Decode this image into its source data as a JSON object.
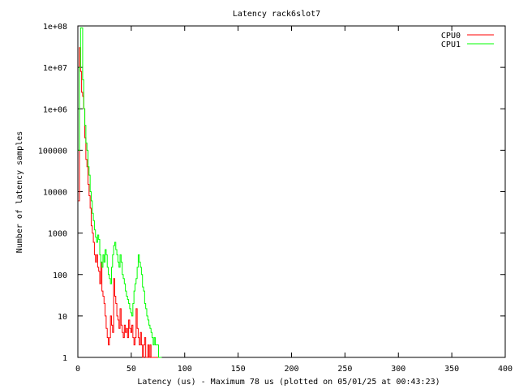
{
  "chart_data": {
    "type": "line",
    "title": "Latency rack6slot7",
    "xlabel": "Latency (us) - Maximum 78 us (plotted on 05/01/25 at 00:43:23)",
    "ylabel": "Number of latency samples",
    "xlim": [
      0,
      400
    ],
    "ylim": [
      1,
      100000000
    ],
    "yscale": "log",
    "grid": false,
    "legend": "top-right",
    "x_ticks": [
      {
        "value": 0,
        "label": "0"
      },
      {
        "value": 50,
        "label": "50"
      },
      {
        "value": 100,
        "label": "100"
      },
      {
        "value": 150,
        "label": "150"
      },
      {
        "value": 200,
        "label": "200"
      },
      {
        "value": 250,
        "label": "250"
      },
      {
        "value": 300,
        "label": "300"
      },
      {
        "value": 350,
        "label": "350"
      },
      {
        "value": 400,
        "label": "400"
      }
    ],
    "y_ticks": [
      {
        "value": 1,
        "label": "1"
      },
      {
        "value": 10,
        "label": "10"
      },
      {
        "value": 100,
        "label": "100"
      },
      {
        "value": 1000,
        "label": "1000"
      },
      {
        "value": 10000,
        "label": "10000"
      },
      {
        "value": 100000,
        "label": "100000"
      },
      {
        "value": 1000000,
        "label": "1e+06"
      },
      {
        "value": 10000000,
        "label": "1e+07"
      },
      {
        "value": 100000000,
        "label": "1e+08"
      }
    ],
    "series": [
      {
        "name": "CPU0",
        "color": "#ff0000",
        "x": [
          1,
          2,
          3,
          4,
          5,
          6,
          7,
          8,
          9,
          10,
          11,
          12,
          13,
          14,
          15,
          16,
          17,
          18,
          19,
          20,
          21,
          22,
          23,
          24,
          25,
          26,
          27,
          28,
          29,
          30,
          31,
          32,
          33,
          34,
          35,
          36,
          37,
          38,
          39,
          40,
          41,
          42,
          43,
          44,
          45,
          46,
          47,
          48,
          49,
          50,
          51,
          52,
          53,
          54,
          55,
          56,
          57,
          58,
          59,
          60,
          61,
          62,
          63,
          64,
          65,
          66,
          67,
          68,
          69,
          70,
          71,
          72,
          73,
          74,
          75,
          76,
          77,
          78
        ],
        "values": [
          6000,
          30000000,
          8000000,
          2500000,
          2000000,
          1000000,
          200000,
          60000,
          40000,
          15000,
          8000,
          4000,
          1500,
          1000,
          600,
          300,
          200,
          300,
          150,
          120,
          60,
          200,
          40,
          30,
          20,
          10,
          5,
          3,
          2,
          3,
          10,
          6,
          4,
          80,
          30,
          20,
          10,
          8,
          5,
          15,
          6,
          4,
          3,
          6,
          4,
          5,
          3,
          8,
          5,
          4,
          6,
          3,
          2,
          3,
          15,
          5,
          3,
          2,
          4,
          2,
          1,
          2,
          3,
          1,
          1,
          2,
          1,
          2,
          1,
          1,
          1,
          1,
          1,
          1,
          1,
          1,
          1,
          1
        ]
      },
      {
        "name": "CPU1",
        "color": "#00ff00",
        "x": [
          1,
          2,
          3,
          4,
          5,
          6,
          7,
          8,
          9,
          10,
          11,
          12,
          13,
          14,
          15,
          16,
          17,
          18,
          19,
          20,
          21,
          22,
          23,
          24,
          25,
          26,
          27,
          28,
          29,
          30,
          31,
          32,
          33,
          34,
          35,
          36,
          37,
          38,
          39,
          40,
          41,
          42,
          43,
          44,
          45,
          46,
          47,
          48,
          49,
          50,
          51,
          52,
          53,
          54,
          55,
          56,
          57,
          58,
          59,
          60,
          61,
          62,
          63,
          64,
          65,
          66,
          67,
          68,
          69,
          70,
          71,
          72,
          73,
          74,
          75,
          76,
          77,
          78
        ],
        "values": [
          100000,
          10000000,
          90000000,
          90000000,
          5000000,
          1000000,
          400000,
          150000,
          100000,
          40000,
          25000,
          10000,
          6000,
          3000,
          2000,
          1200,
          800,
          600,
          900,
          700,
          300,
          200,
          150,
          300,
          200,
          400,
          300,
          150,
          100,
          80,
          60,
          150,
          300,
          500,
          600,
          400,
          300,
          200,
          150,
          300,
          200,
          100,
          80,
          60,
          40,
          30,
          25,
          20,
          15,
          12,
          10,
          20,
          40,
          60,
          80,
          150,
          300,
          200,
          150,
          100,
          50,
          40,
          20,
          15,
          10,
          8,
          6,
          5,
          4,
          3,
          2,
          3,
          2,
          2,
          2,
          1,
          1,
          1
        ]
      }
    ]
  }
}
